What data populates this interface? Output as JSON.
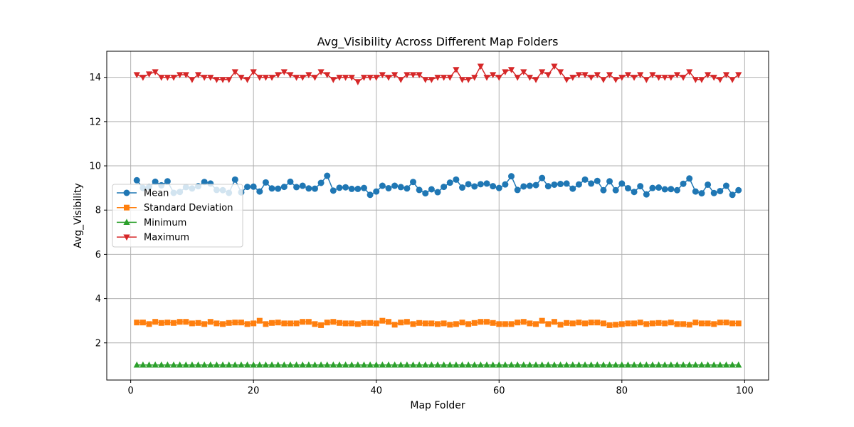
{
  "chart_data": {
    "type": "line",
    "title": "Avg_Visibility Across Different Map Folders",
    "xlabel": "Map Folder",
    "ylabel": "Avg_Visibility",
    "xlim": [
      -3.9,
      103.9
    ],
    "ylim": [
      0.32,
      15.18
    ],
    "xticks": [
      0,
      20,
      40,
      60,
      80,
      100
    ],
    "yticks": [
      2,
      4,
      6,
      8,
      10,
      12,
      14
    ],
    "grid": true,
    "legend": "center-left",
    "x": [
      1,
      2,
      3,
      4,
      5,
      6,
      7,
      8,
      9,
      10,
      11,
      12,
      13,
      14,
      15,
      16,
      17,
      18,
      19,
      20,
      21,
      22,
      23,
      24,
      25,
      26,
      27,
      28,
      29,
      30,
      31,
      32,
      33,
      34,
      35,
      36,
      37,
      38,
      39,
      40,
      41,
      42,
      43,
      44,
      45,
      46,
      47,
      48,
      49,
      50,
      51,
      52,
      53,
      54,
      55,
      56,
      57,
      58,
      59,
      60,
      61,
      62,
      63,
      64,
      65,
      66,
      67,
      68,
      69,
      70,
      71,
      72,
      73,
      74,
      75,
      76,
      77,
      78,
      79,
      80,
      81,
      82,
      83,
      84,
      85,
      86,
      87,
      88,
      89,
      90,
      91,
      92,
      93,
      94,
      95,
      96,
      97,
      98,
      99
    ],
    "series": [
      {
        "name": "Mean",
        "color": "#1f77b4",
        "marker": "circle",
        "values": [
          9.35,
          9.0,
          9.05,
          9.28,
          9.12,
          9.3,
          8.78,
          8.82,
          9.04,
          8.98,
          9.08,
          9.27,
          9.2,
          8.91,
          8.9,
          8.78,
          9.38,
          8.8,
          9.05,
          9.06,
          8.84,
          9.25,
          8.98,
          8.97,
          9.05,
          9.28,
          9.04,
          9.1,
          8.98,
          8.97,
          9.23,
          9.55,
          8.88,
          9.01,
          9.03,
          8.96,
          8.96,
          9.0,
          8.69,
          8.84,
          9.1,
          8.99,
          9.1,
          9.04,
          8.98,
          9.27,
          8.91,
          8.76,
          8.94,
          8.81,
          9.05,
          9.24,
          9.38,
          9.02,
          9.17,
          9.07,
          9.17,
          9.2,
          9.08,
          9.0,
          9.16,
          9.53,
          8.91,
          9.07,
          9.1,
          9.13,
          9.45,
          9.08,
          9.15,
          9.18,
          9.2,
          8.97,
          9.16,
          9.38,
          9.2,
          9.32,
          8.9,
          9.3,
          8.9,
          9.2,
          8.99,
          8.82,
          9.08,
          8.71,
          9.0,
          9.02,
          8.94,
          8.95,
          8.9,
          9.19,
          9.43,
          8.84,
          8.76,
          9.15,
          8.77,
          8.86,
          9.1,
          8.69,
          8.9
        ]
      },
      {
        "name": "Standard Deviation",
        "color": "#ff7f0e",
        "marker": "square",
        "values": [
          2.92,
          2.92,
          2.85,
          2.95,
          2.9,
          2.92,
          2.9,
          2.95,
          2.95,
          2.88,
          2.9,
          2.85,
          2.95,
          2.88,
          2.85,
          2.9,
          2.92,
          2.92,
          2.85,
          2.88,
          3.0,
          2.85,
          2.9,
          2.92,
          2.88,
          2.88,
          2.88,
          2.95,
          2.95,
          2.85,
          2.8,
          2.92,
          2.95,
          2.9,
          2.88,
          2.88,
          2.85,
          2.9,
          2.9,
          2.88,
          3.0,
          2.95,
          2.82,
          2.92,
          2.95,
          2.85,
          2.9,
          2.88,
          2.88,
          2.85,
          2.88,
          2.82,
          2.85,
          2.92,
          2.85,
          2.9,
          2.95,
          2.95,
          2.9,
          2.85,
          2.85,
          2.85,
          2.92,
          2.95,
          2.88,
          2.85,
          3.0,
          2.85,
          2.95,
          2.82,
          2.9,
          2.88,
          2.92,
          2.88,
          2.92,
          2.92,
          2.88,
          2.8,
          2.82,
          2.85,
          2.88,
          2.88,
          2.92,
          2.85,
          2.88,
          2.9,
          2.88,
          2.92,
          2.85,
          2.85,
          2.82,
          2.92,
          2.88,
          2.88,
          2.85,
          2.92,
          2.92,
          2.88,
          2.88
        ]
      },
      {
        "name": "Minimum",
        "color": "#2ca02c",
        "marker": "triangle-up",
        "values": [
          1,
          1,
          1,
          1,
          1,
          1,
          1,
          1,
          1,
          1,
          1,
          1,
          1,
          1,
          1,
          1,
          1,
          1,
          1,
          1,
          1,
          1,
          1,
          1,
          1,
          1,
          1,
          1,
          1,
          1,
          1,
          1,
          1,
          1,
          1,
          1,
          1,
          1,
          1,
          1,
          1,
          1,
          1,
          1,
          1,
          1,
          1,
          1,
          1,
          1,
          1,
          1,
          1,
          1,
          1,
          1,
          1,
          1,
          1,
          1,
          1,
          1,
          1,
          1,
          1,
          1,
          1,
          1,
          1,
          1,
          1,
          1,
          1,
          1,
          1,
          1,
          1,
          1,
          1,
          1,
          1,
          1,
          1,
          1,
          1,
          1,
          1,
          1,
          1,
          1,
          1,
          1,
          1,
          1,
          1,
          1,
          1,
          1,
          1
        ]
      },
      {
        "name": "Maximum",
        "color": "#d62728",
        "marker": "triangle-down",
        "values": [
          14.12,
          14.0,
          14.15,
          14.25,
          14.0,
          14.0,
          14.0,
          14.12,
          14.12,
          13.9,
          14.12,
          14.0,
          14.0,
          13.9,
          13.9,
          13.9,
          14.25,
          14.0,
          13.9,
          14.25,
          14.0,
          14.0,
          14.0,
          14.12,
          14.25,
          14.12,
          14.0,
          14.0,
          14.12,
          14.0,
          14.25,
          14.12,
          13.9,
          14.0,
          14.0,
          14.0,
          13.8,
          14.0,
          14.0,
          14.0,
          14.12,
          14.0,
          14.12,
          13.9,
          14.12,
          14.12,
          14.12,
          13.9,
          13.9,
          14.0,
          14.0,
          14.0,
          14.35,
          13.9,
          13.9,
          14.0,
          14.5,
          14.0,
          14.12,
          14.0,
          14.25,
          14.35,
          14.0,
          14.25,
          14.0,
          13.9,
          14.25,
          14.12,
          14.5,
          14.25,
          13.9,
          14.0,
          14.12,
          14.12,
          14.0,
          14.12,
          13.9,
          14.12,
          13.9,
          14.0,
          14.12,
          14.0,
          14.12,
          13.9,
          14.12,
          14.0,
          14.0,
          14.0,
          14.12,
          14.0,
          14.25,
          13.9,
          13.9,
          14.12,
          14.0,
          13.9,
          14.12,
          13.9,
          14.12
        ]
      }
    ]
  }
}
